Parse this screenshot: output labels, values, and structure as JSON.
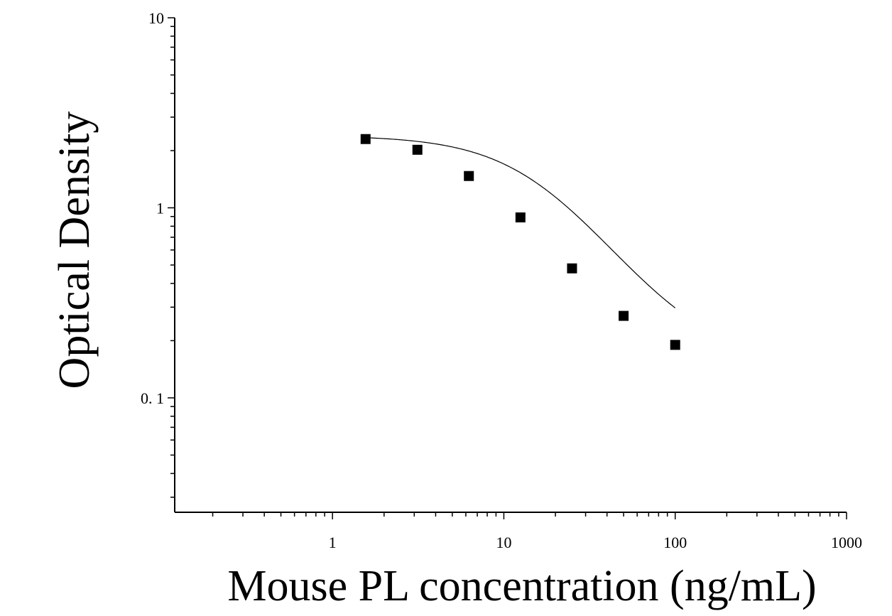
{
  "chart_data": {
    "type": "scatter",
    "title": "",
    "xlabel": "Mouse PL concentration (ng/mL)",
    "ylabel": "Optical Density",
    "x_scale": "log",
    "y_scale": "log",
    "xlim": [
      0.12,
      1000
    ],
    "ylim": [
      0.025,
      10
    ],
    "x_ticks": [
      {
        "value": 1,
        "label": "1"
      },
      {
        "value": 10,
        "label": "10"
      },
      {
        "value": 100,
        "label": "100"
      },
      {
        "value": 1000,
        "label": "1000"
      }
    ],
    "y_ticks": [
      {
        "value": 0.1,
        "label": "0. 1"
      },
      {
        "value": 1,
        "label": "1"
      },
      {
        "value": 10,
        "label": "10"
      }
    ],
    "grid": false,
    "legend": "none",
    "series": [
      {
        "marker": "square",
        "color": "#000000",
        "x": [
          1.56,
          3.13,
          6.25,
          12.5,
          25,
          50,
          100
        ],
        "y": [
          2.3,
          2.02,
          1.47,
          0.89,
          0.48,
          0.27,
          0.19
        ]
      }
    ],
    "fit_curve": {
      "type": "4PL",
      "color": "#000000",
      "A": 2.4,
      "B": 1.5,
      "C": 17,
      "D": 0.15,
      "x_range": [
        1.56,
        100
      ]
    }
  }
}
